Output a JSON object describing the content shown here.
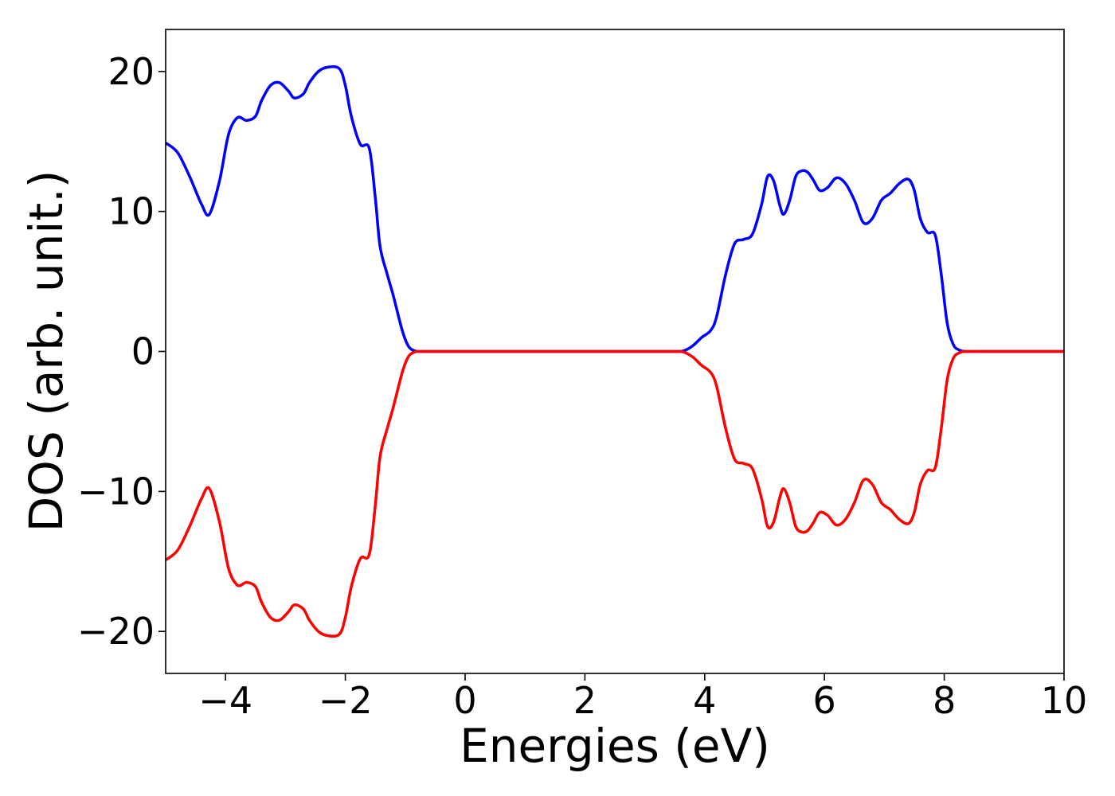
{
  "chart_data": {
    "type": "line",
    "xlabel": "Energies (eV)",
    "ylabel": "DOS (arb. unit.)",
    "xlim": [
      -5,
      10
    ],
    "ylim": [
      -23,
      23
    ],
    "x_ticks": [
      -4,
      -2,
      0,
      2,
      4,
      6,
      8,
      10
    ],
    "y_ticks": [
      -20,
      -10,
      0,
      10,
      20
    ],
    "x_tick_labels": [
      "−4",
      "−2",
      "0",
      "2",
      "4",
      "6",
      "8",
      "10"
    ],
    "y_tick_labels": [
      "−20",
      "−10",
      "0",
      "10",
      "20"
    ],
    "grid": false,
    "legend": "none",
    "series": [
      {
        "color": "#0000ff",
        "x": [
          -5.0,
          -4.8,
          -4.6,
          -4.4,
          -4.27,
          -4.1,
          -3.95,
          -3.8,
          -3.65,
          -3.5,
          -3.4,
          -3.25,
          -3.1,
          -2.95,
          -2.85,
          -2.7,
          -2.6,
          -2.45,
          -2.3,
          -2.1,
          -2.0,
          -1.9,
          -1.75,
          -1.6,
          -1.5,
          -1.42,
          -1.3,
          -1.2,
          -1.05,
          -0.95,
          -0.85,
          -0.75,
          -0.6,
          -0.5,
          0.0,
          1.0,
          2.0,
          3.0,
          3.5,
          3.65,
          3.8,
          3.95,
          4.1,
          4.2,
          4.35,
          4.5,
          4.65,
          4.8,
          4.95,
          5.05,
          5.15,
          5.25,
          5.32,
          5.42,
          5.52,
          5.62,
          5.72,
          5.82,
          5.92,
          6.05,
          6.2,
          6.35,
          6.5,
          6.65,
          6.8,
          6.95,
          7.1,
          7.25,
          7.4,
          7.5,
          7.6,
          7.72,
          7.85,
          7.95,
          8.05,
          8.15,
          8.25,
          8.35,
          8.5,
          9.0,
          10.0
        ],
        "values": [
          14.9,
          14.2,
          12.5,
          10.5,
          9.8,
          12.2,
          15.5,
          16.7,
          16.5,
          16.8,
          17.9,
          19.0,
          19.2,
          18.6,
          18.1,
          18.4,
          19.2,
          20.0,
          20.3,
          20.2,
          19.0,
          16.8,
          14.8,
          14.5,
          11.0,
          7.5,
          5.5,
          4.0,
          1.5,
          0.4,
          0.05,
          0.0,
          0.0,
          0.0,
          0.0,
          0.0,
          0.0,
          0.0,
          0.0,
          0.05,
          0.4,
          1.0,
          1.5,
          2.5,
          5.5,
          7.7,
          8.0,
          8.4,
          10.5,
          12.5,
          12.2,
          10.5,
          9.8,
          10.8,
          12.5,
          12.9,
          12.8,
          12.2,
          11.5,
          11.7,
          12.4,
          12.0,
          10.8,
          9.2,
          9.5,
          10.8,
          11.3,
          12.0,
          12.3,
          11.5,
          9.5,
          8.5,
          8.3,
          5.5,
          2.0,
          0.5,
          0.1,
          0.0,
          0.0,
          0.0,
          0.0
        ]
      },
      {
        "color": "#ff0000",
        "x": [
          -5.0,
          -4.8,
          -4.6,
          -4.4,
          -4.27,
          -4.1,
          -3.95,
          -3.8,
          -3.65,
          -3.5,
          -3.4,
          -3.25,
          -3.1,
          -2.95,
          -2.85,
          -2.7,
          -2.6,
          -2.45,
          -2.3,
          -2.1,
          -2.0,
          -1.9,
          -1.75,
          -1.6,
          -1.5,
          -1.42,
          -1.3,
          -1.2,
          -1.05,
          -0.95,
          -0.85,
          -0.75,
          -0.6,
          -0.5,
          0.0,
          1.0,
          2.0,
          3.0,
          3.5,
          3.65,
          3.8,
          3.95,
          4.1,
          4.2,
          4.35,
          4.5,
          4.65,
          4.8,
          4.95,
          5.05,
          5.15,
          5.25,
          5.32,
          5.42,
          5.52,
          5.62,
          5.72,
          5.82,
          5.92,
          6.05,
          6.2,
          6.35,
          6.5,
          6.65,
          6.8,
          6.95,
          7.1,
          7.25,
          7.4,
          7.5,
          7.6,
          7.72,
          7.85,
          7.95,
          8.05,
          8.15,
          8.25,
          8.35,
          8.5,
          9.0,
          10.0
        ],
        "values": [
          -14.9,
          -14.2,
          -12.5,
          -10.5,
          -9.8,
          -12.2,
          -15.5,
          -16.7,
          -16.5,
          -16.8,
          -17.9,
          -19.0,
          -19.2,
          -18.6,
          -18.1,
          -18.4,
          -19.2,
          -20.0,
          -20.3,
          -20.2,
          -19.0,
          -16.8,
          -14.8,
          -14.5,
          -11.0,
          -7.5,
          -5.5,
          -4.0,
          -1.5,
          -0.4,
          -0.05,
          0.0,
          0.0,
          0.0,
          0.0,
          0.0,
          0.0,
          0.0,
          0.0,
          -0.05,
          -0.4,
          -1.0,
          -1.5,
          -2.5,
          -5.5,
          -7.7,
          -8.0,
          -8.4,
          -10.5,
          -12.5,
          -12.2,
          -10.5,
          -9.8,
          -10.8,
          -12.5,
          -12.9,
          -12.8,
          -12.2,
          -11.5,
          -11.7,
          -12.4,
          -12.0,
          -10.8,
          -9.2,
          -9.5,
          -10.8,
          -11.3,
          -12.0,
          -12.3,
          -11.5,
          -9.5,
          -8.5,
          -8.3,
          -5.5,
          -2.0,
          -0.5,
          -0.1,
          0.0,
          0.0,
          0.0,
          0.0
        ]
      }
    ]
  }
}
